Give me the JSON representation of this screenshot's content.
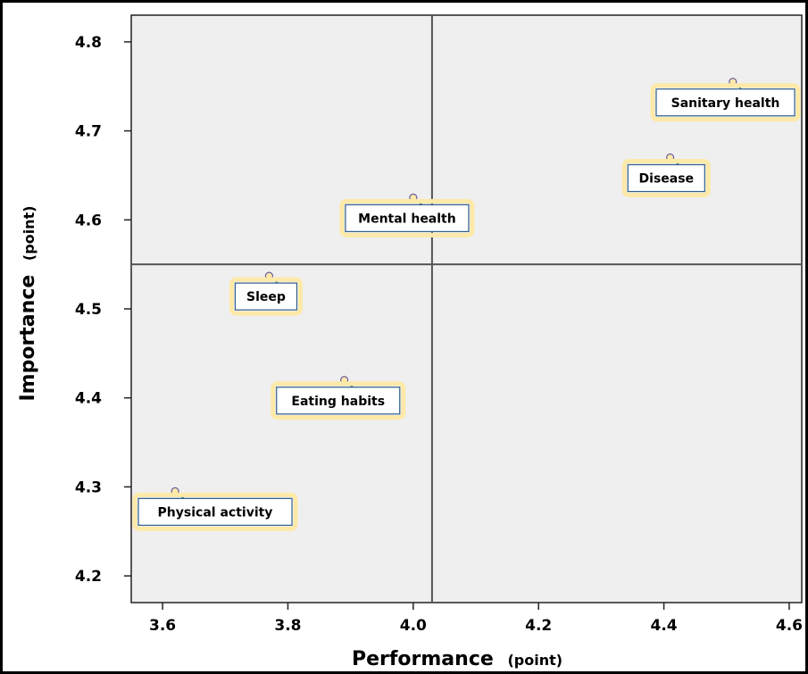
{
  "chart_data": {
    "type": "scatter",
    "title": "",
    "xlabel": "Performance",
    "xlabel_unit": "(point)",
    "ylabel": "Importance",
    "ylabel_unit": "(point)",
    "xlim": [
      3.55,
      4.62
    ],
    "ylim": [
      4.17,
      4.83
    ],
    "xticks": [
      "3.6",
      "3.8",
      "4.0",
      "4.2",
      "4.4",
      "4.6"
    ],
    "yticks": [
      "4.2",
      "4.3",
      "4.4",
      "4.5",
      "4.6",
      "4.7",
      "4.8"
    ],
    "x_mean": 4.03,
    "y_mean": 4.55,
    "grid": false,
    "points": [
      {
        "label": "Sanitary health",
        "x": 4.51,
        "y": 4.755
      },
      {
        "label": "Disease",
        "x": 4.41,
        "y": 4.67
      },
      {
        "label": "Mental health",
        "x": 4.0,
        "y": 4.625
      },
      {
        "label": "Sleep",
        "x": 3.77,
        "y": 4.537
      },
      {
        "label": "Eating habits",
        "x": 3.89,
        "y": 4.42
      },
      {
        "label": "Physical activity",
        "x": 3.62,
        "y": 4.295
      }
    ],
    "colors": {
      "plot_background": "#efefef",
      "reference_line": "#555555",
      "label_border": "#2f5f8f",
      "label_glow": "#fde9a8"
    }
  }
}
